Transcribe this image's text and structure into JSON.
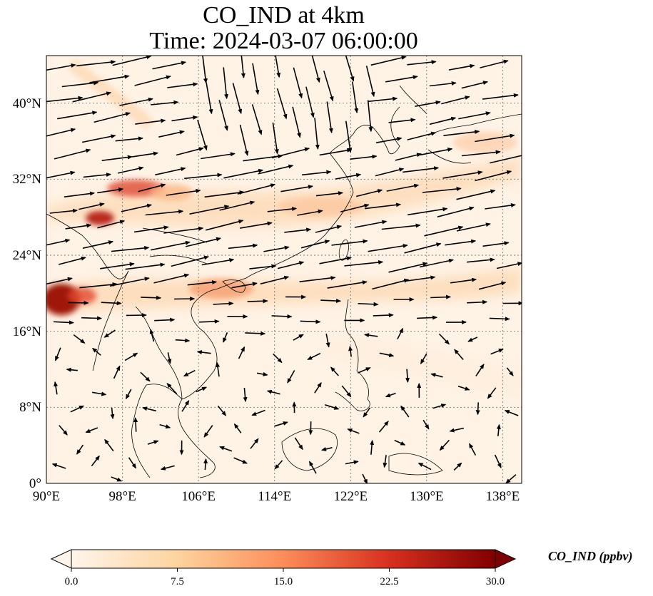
{
  "title": {
    "line1": "CO_IND at 4km",
    "line2": "Time: 2024-03-07 06:00:00"
  },
  "map": {
    "lon_ticks": [
      "90°E",
      "98°E",
      "106°E",
      "114°E",
      "122°E",
      "130°E",
      "138°E"
    ],
    "lat_ticks": [
      "0°",
      "8°N",
      "16°N",
      "24°N",
      "32°N",
      "40°N"
    ],
    "lon_range": [
      90,
      140
    ],
    "lat_range": [
      0,
      45
    ],
    "gridlines": "dotted",
    "field_colors": {
      "low": "#fff5eb",
      "mid": "#fdae6b",
      "high": "#7f0000"
    },
    "wind_vectors": "black arrows"
  },
  "colorbar": {
    "label": "CO_IND (ppbv)",
    "ticks": [
      "0.0",
      "7.5",
      "15.0",
      "22.5",
      "30.0"
    ],
    "range": [
      0,
      30
    ],
    "extend": "both",
    "colormap": "OrRd"
  }
}
